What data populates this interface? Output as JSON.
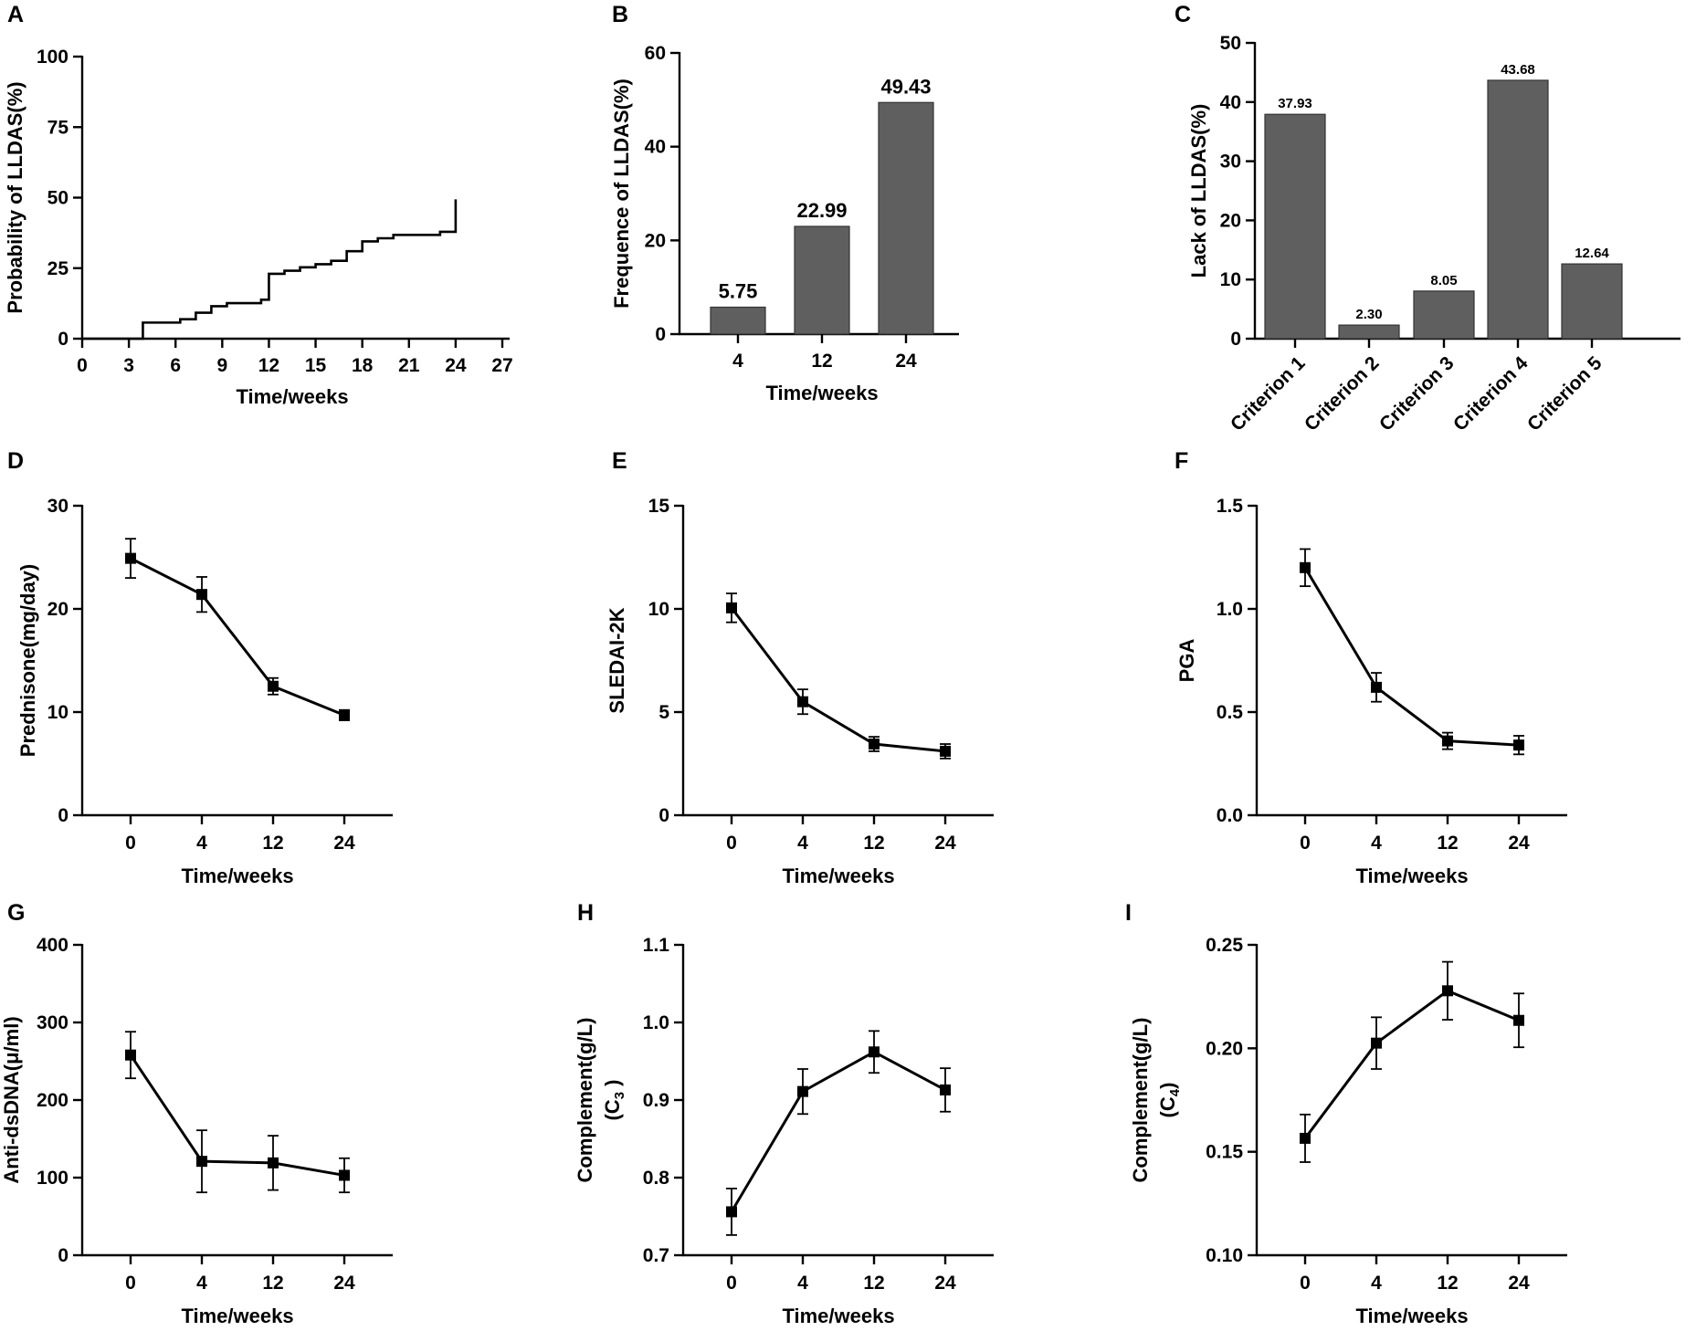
{
  "chart_data": [
    {
      "id": "A",
      "type": "step",
      "letter": "A",
      "title": "",
      "xlabel": "Time/weeks",
      "ylabel": "Probability of LLDAS(%)",
      "xlim": [
        0,
        27
      ],
      "ylim": [
        0,
        100
      ],
      "x_ticks": [
        0,
        3,
        6,
        9,
        12,
        15,
        18,
        21,
        24,
        27
      ],
      "y_ticks": [
        0,
        25,
        50,
        75,
        100
      ],
      "steps": [
        [
          0,
          0
        ],
        [
          3.9,
          5.7
        ],
        [
          6.3,
          6.9
        ],
        [
          7.3,
          9.2
        ],
        [
          8.3,
          11.5
        ],
        [
          9.3,
          12.6
        ],
        [
          11.5,
          13.8
        ],
        [
          12,
          23
        ],
        [
          13,
          24.1
        ],
        [
          14,
          25.3
        ],
        [
          15,
          26.4
        ],
        [
          16,
          27.6
        ],
        [
          17,
          31
        ],
        [
          18,
          34.5
        ],
        [
          19,
          35.6
        ],
        [
          20,
          36.8
        ],
        [
          23,
          37.9
        ],
        [
          24,
          49.4
        ]
      ]
    },
    {
      "id": "B",
      "type": "bar",
      "letter": "B",
      "xlabel": "Time/weeks",
      "ylabel": "Frequence of LLDAS(%)",
      "categories": [
        "4",
        "12",
        "24"
      ],
      "values": [
        5.75,
        22.99,
        49.43
      ],
      "value_labels": [
        "5.75",
        "22.99",
        "49.43"
      ],
      "ylim": [
        0,
        60
      ],
      "y_ticks": [
        0,
        20,
        40,
        60
      ]
    },
    {
      "id": "C",
      "type": "bar",
      "letter": "C",
      "xlabel": "",
      "ylabel": "Lack of LLDAS(%)",
      "categories": [
        "Criterion 1",
        "Criterion 2",
        "Criterion 3",
        "Criterion 4",
        "Criterion 5"
      ],
      "values": [
        37.93,
        2.3,
        8.05,
        43.68,
        12.64
      ],
      "value_labels": [
        "37.93",
        "2.30",
        "8.05",
        "43.68",
        "12.64"
      ],
      "ylim": [
        0,
        50
      ],
      "y_ticks": [
        0,
        10,
        20,
        30,
        40,
        50
      ]
    },
    {
      "id": "D",
      "type": "line",
      "letter": "D",
      "xlabel": "Time/weeks",
      "ylabel": "Prednisone(mg/day)",
      "categories": [
        "0",
        "4",
        "12",
        "24"
      ],
      "values": [
        24.9,
        21.4,
        12.5,
        9.7
      ],
      "errors": [
        1.9,
        1.7,
        0.8,
        0.5
      ],
      "ylim": [
        0,
        30
      ],
      "y_ticks": [
        0,
        10,
        20,
        30
      ],
      "y_tick_labels": [
        "0",
        "10",
        "20",
        "30"
      ]
    },
    {
      "id": "E",
      "type": "line",
      "letter": "E",
      "xlabel": "Time/weeks",
      "ylabel": "SLEDAI-2K",
      "categories": [
        "0",
        "4",
        "12",
        "24"
      ],
      "values": [
        10.05,
        5.5,
        3.45,
        3.1
      ],
      "errors": [
        0.7,
        0.6,
        0.35,
        0.35
      ],
      "ylim": [
        0,
        15
      ],
      "y_ticks": [
        0,
        5,
        10,
        15
      ],
      "y_tick_labels": [
        "0",
        "5",
        "10",
        "15"
      ]
    },
    {
      "id": "F",
      "type": "line",
      "letter": "F",
      "xlabel": "Time/weeks",
      "ylabel": "PGA",
      "categories": [
        "0",
        "4",
        "12",
        "24"
      ],
      "values": [
        1.2,
        0.62,
        0.36,
        0.34
      ],
      "errors": [
        0.09,
        0.07,
        0.04,
        0.045
      ],
      "ylim": [
        0,
        1.5
      ],
      "y_ticks": [
        0,
        0.5,
        1,
        1.5
      ],
      "y_tick_labels": [
        "0.0",
        "0.5",
        "1.0",
        "1.5"
      ]
    },
    {
      "id": "G",
      "type": "line",
      "letter": "G",
      "xlabel": "Time/weeks",
      "ylabel": "Anti-dsDNA(μ/ml)",
      "categories": [
        "0",
        "4",
        "12",
        "24"
      ],
      "values": [
        258,
        121,
        119,
        103
      ],
      "errors": [
        30,
        40,
        35,
        22
      ],
      "ylim": [
        0,
        400
      ],
      "y_ticks": [
        0,
        100,
        200,
        300,
        400
      ],
      "y_tick_labels": [
        "0",
        "100",
        "200",
        "300",
        "400"
      ]
    },
    {
      "id": "H",
      "type": "line",
      "letter": "H",
      "xlabel": "Time/weeks",
      "ylabel": "Complement(g/L)",
      "ylabel2": "(C",
      "ylabel2_sub": "3",
      "ylabel2_end": " )",
      "categories": [
        "0",
        "4",
        "12",
        "24"
      ],
      "values": [
        0.756,
        0.911,
        0.962,
        0.913
      ],
      "errors": [
        0.03,
        0.029,
        0.027,
        0.028
      ],
      "ylim": [
        0.7,
        1.1
      ],
      "y_ticks": [
        0.7,
        0.8,
        0.9,
        1,
        1.1
      ],
      "y_tick_labels": [
        "0.7",
        "0.8",
        "0.9",
        "1.0",
        "1.1"
      ]
    },
    {
      "id": "I",
      "type": "line",
      "letter": "I",
      "xlabel": "Time/weeks",
      "ylabel": "Complement(g/L)",
      "ylabel2": "(C",
      "ylabel2_sub": "4",
      "ylabel2_end": ")",
      "categories": [
        "0",
        "4",
        "12",
        "24"
      ],
      "values": [
        0.1565,
        0.2025,
        0.2278,
        0.2135
      ],
      "errors": [
        0.0115,
        0.0125,
        0.014,
        0.013
      ],
      "ylim": [
        0.1,
        0.25
      ],
      "y_ticks": [
        0.1,
        0.15,
        0.2,
        0.25
      ],
      "y_tick_labels": [
        "0.10",
        "0.15",
        "0.20",
        "0.25"
      ]
    }
  ]
}
